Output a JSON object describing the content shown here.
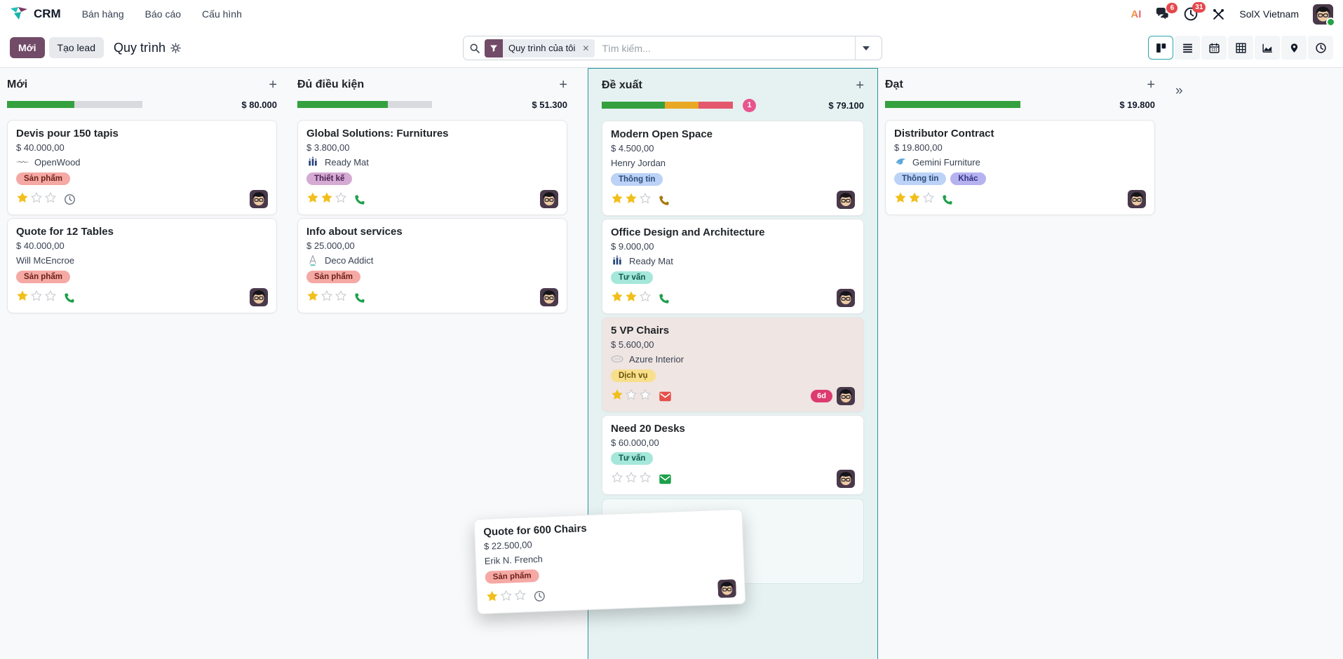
{
  "nav": {
    "app_name": "CRM",
    "menus": [
      "Bán hàng",
      "Báo cáo",
      "Cấu hình"
    ],
    "right": {
      "ai_label": "AI",
      "messages_badge": "6",
      "activities_badge": "31",
      "user_name": "SolX Vietnam"
    }
  },
  "control": {
    "new_button": "Mới",
    "generate_lead_button": "Tạo lead",
    "title": "Quy trình",
    "search": {
      "facet": "Quy trình của tôi",
      "placeholder": "Tìm kiếm..."
    },
    "views": [
      "kanban",
      "list",
      "calendar",
      "pivot",
      "graph",
      "map",
      "activity"
    ],
    "active_view": "kanban"
  },
  "board": {
    "fold_arrow": "»",
    "columns": [
      {
        "name": "Mới",
        "amount": "$ 80.000",
        "progress": [
          {
            "color": "green",
            "pct": 50
          },
          {
            "color": "muted",
            "pct": 50
          }
        ],
        "cards": [
          {
            "title": "Devis pour 150 tapis",
            "amount": "$ 40.000,00",
            "partner": {
              "logo": "openwood",
              "name": "OpenWood"
            },
            "tags": [
              {
                "label": "Sản phẩm",
                "color": "red"
              }
            ],
            "stars": 1,
            "activity": {
              "icon": "clock",
              "color": "gray"
            }
          },
          {
            "title": "Quote for 12 Tables",
            "amount": "$ 40.000,00",
            "contact": "Will McEncroe",
            "tags": [
              {
                "label": "Sản phẩm",
                "color": "red"
              }
            ],
            "stars": 1,
            "activity": {
              "icon": "phone",
              "color": "green"
            }
          }
        ]
      },
      {
        "name": "Đủ điều kiện",
        "amount": "$ 51.300",
        "progress": [
          {
            "color": "green",
            "pct": 67
          },
          {
            "color": "muted",
            "pct": 33
          }
        ],
        "cards": [
          {
            "title": "Global Solutions: Furnitures",
            "amount": "$ 3.800,00",
            "partner": {
              "logo": "readymat",
              "name": "Ready Mat"
            },
            "tags": [
              {
                "label": "Thiết kế",
                "color": "purple"
              }
            ],
            "stars": 2,
            "activity": {
              "icon": "phone",
              "color": "green"
            }
          },
          {
            "title": "Info about services",
            "amount": "$ 25.000,00",
            "partner": {
              "logo": "deco",
              "name": "Deco Addict"
            },
            "tags": [
              {
                "label": "Sản phẩm",
                "color": "red"
              }
            ],
            "stars": 1,
            "activity": {
              "icon": "phone",
              "color": "green"
            }
          }
        ]
      },
      {
        "name": "Đề xuất",
        "amount": "$ 79.100",
        "badge": "1",
        "highlight": true,
        "ghost": true,
        "progress": [
          {
            "color": "green",
            "pct": 48
          },
          {
            "color": "yellow",
            "pct": 26
          },
          {
            "color": "red",
            "pct": 26
          }
        ],
        "cards": [
          {
            "title": "Modern Open Space",
            "amount": "$ 4.500,00",
            "contact": "Henry Jordan",
            "tags": [
              {
                "label": "Thông tin",
                "color": "blue"
              }
            ],
            "stars": 2,
            "activity": {
              "icon": "phone",
              "color": "gold"
            }
          },
          {
            "title": "Office Design and Architecture",
            "amount": "$ 9.000,00",
            "partner": {
              "logo": "readymat",
              "name": "Ready Mat"
            },
            "tags": [
              {
                "label": "Tư vấn",
                "color": "teal"
              }
            ],
            "stars": 2,
            "activity": {
              "icon": "phone",
              "color": "green"
            }
          },
          {
            "title": "5 VP Chairs",
            "amount": "$ 5.600,00",
            "partner": {
              "logo": "azure",
              "name": "Azure Interior"
            },
            "tags": [
              {
                "label": "Dịch vụ",
                "color": "yellow"
              }
            ],
            "stars": 1,
            "activity": {
              "icon": "envelope",
              "color": "red"
            },
            "days_badge": "6d",
            "card_bg": "#efe5e2"
          },
          {
            "title": "Need 20 Desks",
            "amount": "$ 60.000,00",
            "tags": [
              {
                "label": "Tư vấn",
                "color": "teal"
              }
            ],
            "stars": 0,
            "activity": {
              "icon": "envelope",
              "color": "green"
            }
          }
        ]
      },
      {
        "name": "Đạt",
        "amount": "$ 19.800",
        "progress": [
          {
            "color": "green",
            "pct": 100
          }
        ],
        "cards": [
          {
            "title": "Distributor Contract",
            "amount": "$ 19.800,00",
            "partner": {
              "logo": "gemini",
              "name": "Gemini Furniture"
            },
            "tags": [
              {
                "label": "Thông tin",
                "color": "blue"
              },
              {
                "label": "Khác",
                "color": "violet"
              }
            ],
            "stars": 2,
            "activity": {
              "icon": "phone",
              "color": "green"
            }
          }
        ]
      }
    ]
  },
  "dragged_card": {
    "title": "Quote for 600 Chairs",
    "amount": "$ 22.500,00",
    "contact": "Erik N. French",
    "tags": [
      {
        "label": "Sản phẩm",
        "color": "red"
      }
    ],
    "stars": 1,
    "activity": {
      "icon": "clock",
      "color": "gray"
    }
  },
  "colors": {
    "accent": "#714B67",
    "highlight_border": "#2497a0",
    "progress": {
      "green": "#34a13e",
      "yellow": "#e9a823",
      "red": "#e4586e",
      "muted": "#d8dadd"
    },
    "activity": {
      "green": "#1da04b",
      "red": "#e4504a",
      "gray": "#6b7280",
      "gold": "#a6780d"
    },
    "star_filled": "#f1bf1c",
    "tags": {
      "red": {
        "bg": "#f5a9a5",
        "fg": "#6d1f17"
      },
      "purple": {
        "bg": "#d5abd4",
        "fg": "#4a2050"
      },
      "blue": {
        "bg": "#bcd2f7",
        "fg": "#2c4a7a"
      },
      "teal": {
        "bg": "#a5e7db",
        "fg": "#0e5b4e"
      },
      "yellow": {
        "bg": "#f8df8b",
        "fg": "#6a520a"
      },
      "violet": {
        "bg": "#b6b2f0",
        "fg": "#343384"
      }
    }
  }
}
